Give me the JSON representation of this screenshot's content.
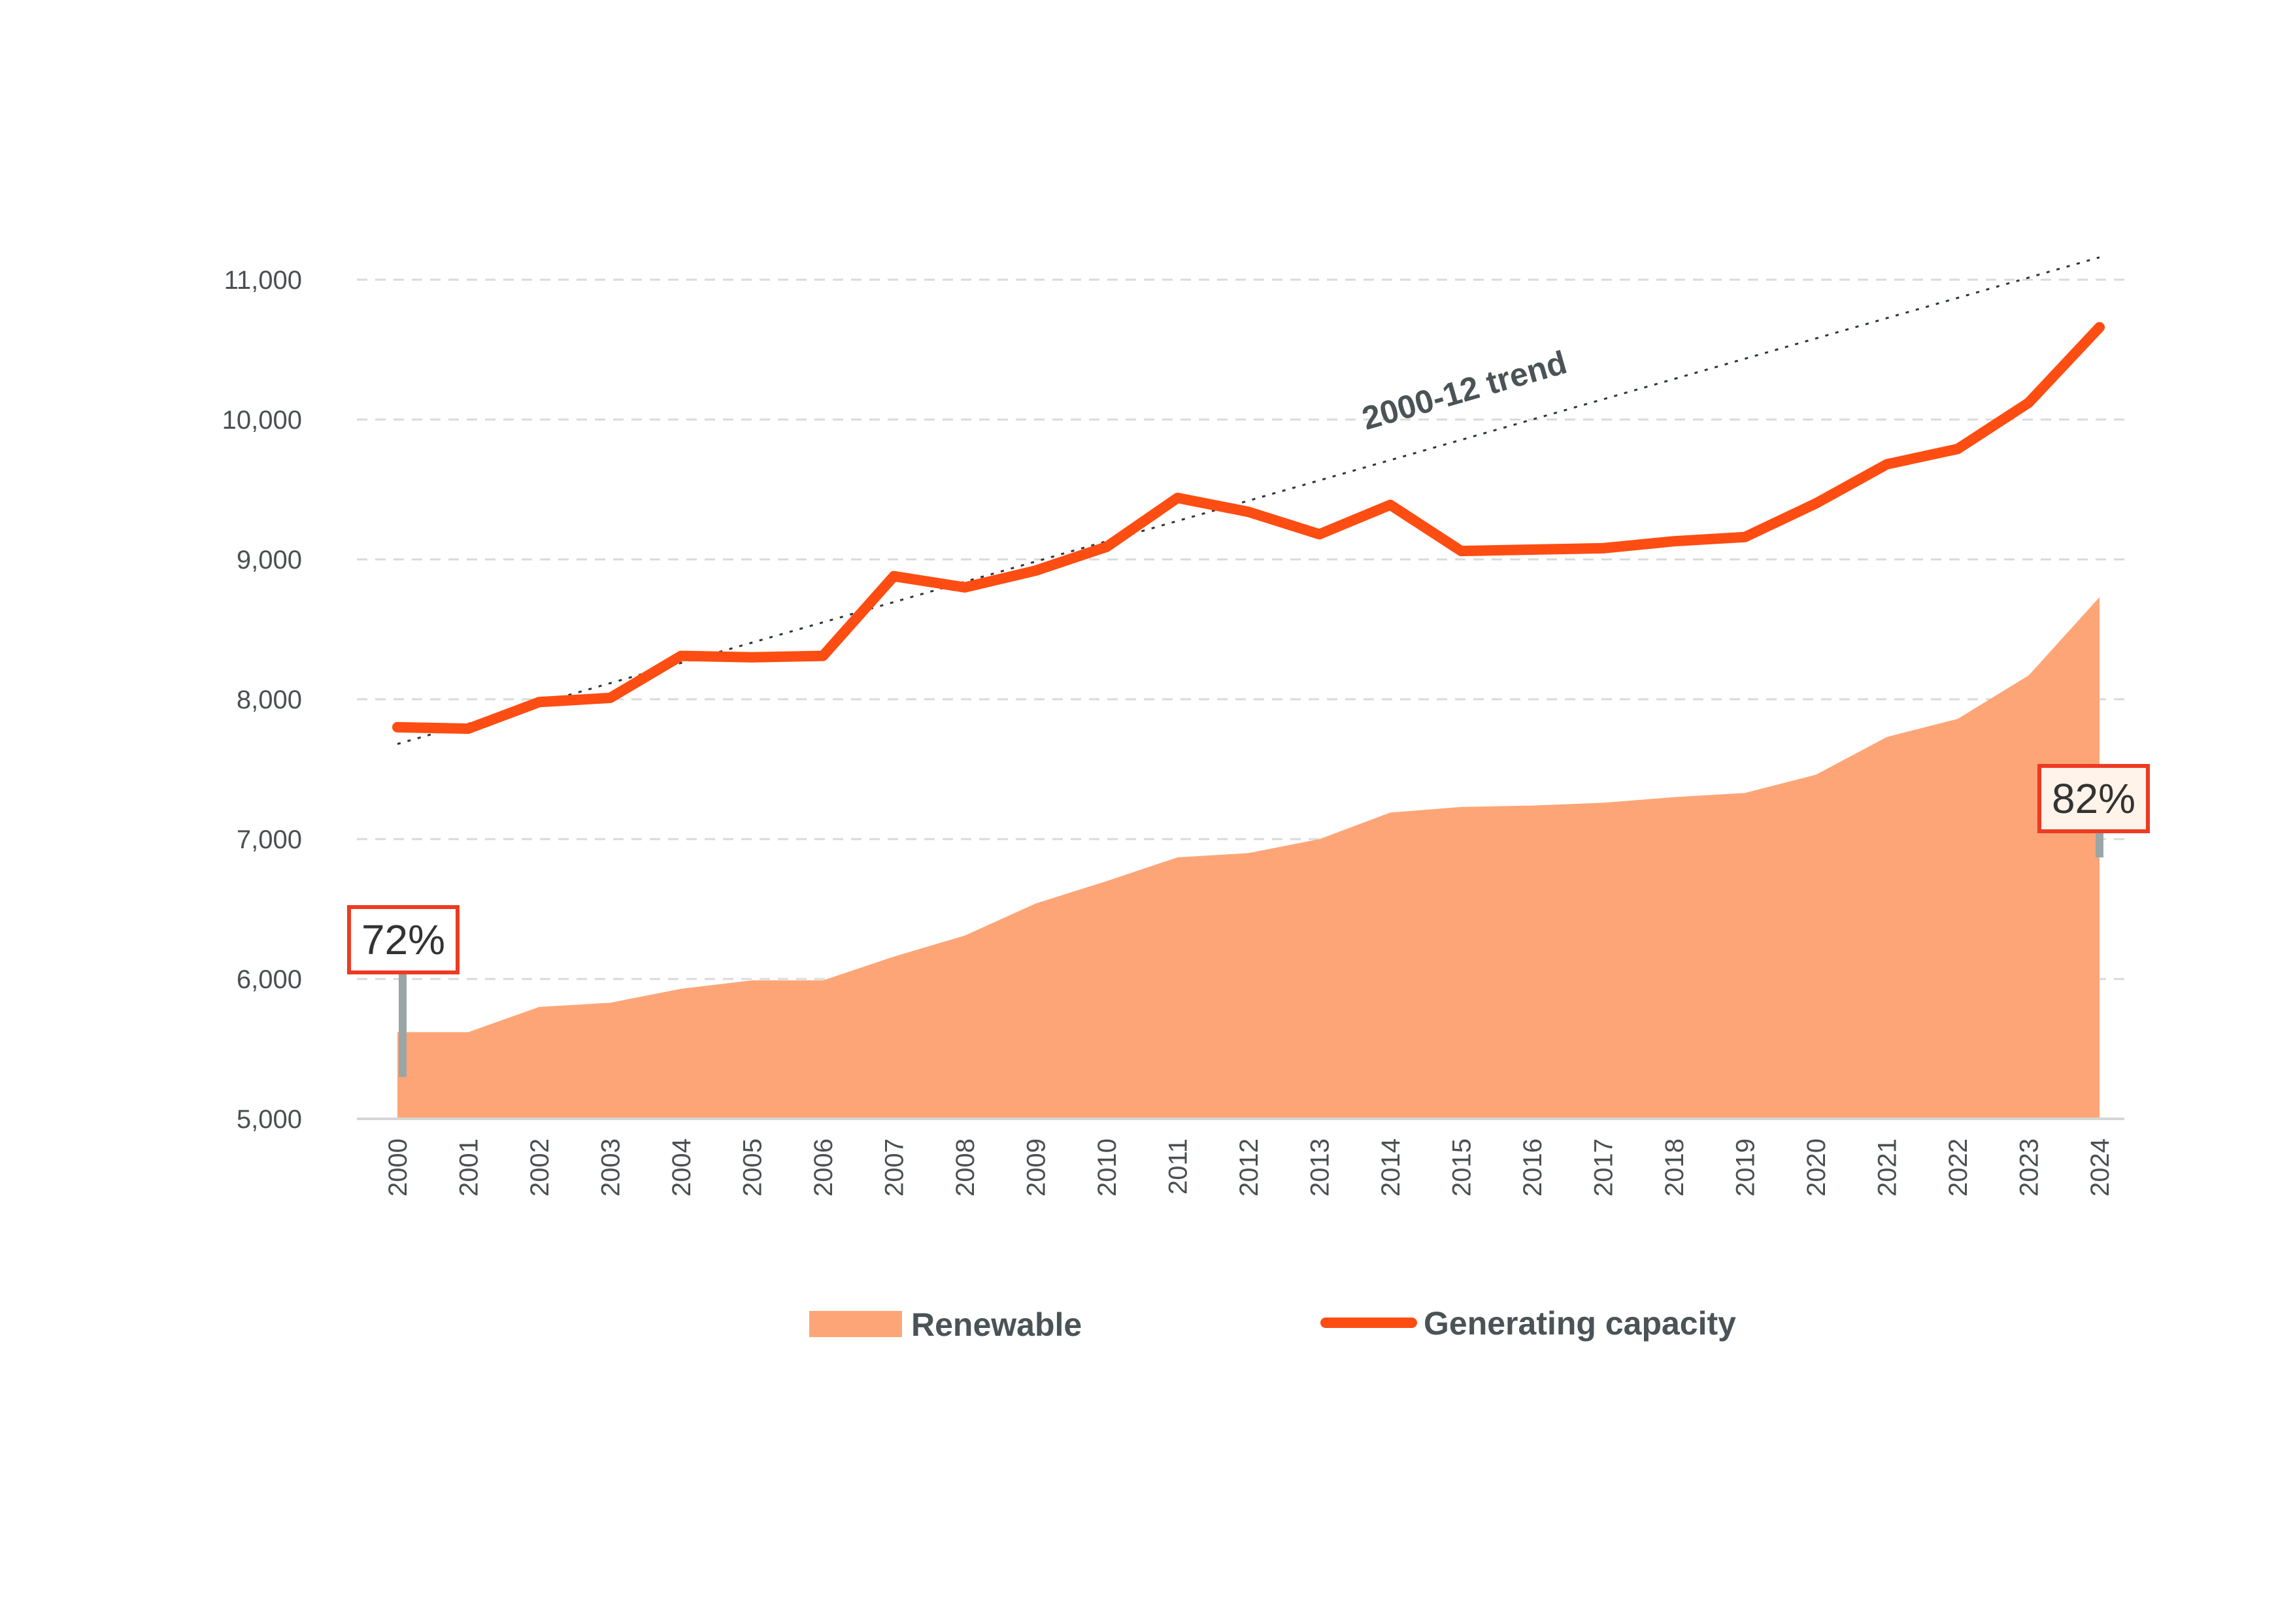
{
  "chart_data": {
    "type": "line",
    "title": "",
    "xlabel": "",
    "ylabel": "",
    "ylim": [
      5000,
      11000
    ],
    "yticks": [
      5000,
      6000,
      7000,
      8000,
      9000,
      10000,
      11000
    ],
    "ytick_labels": [
      "5,000",
      "6,000",
      "7,000",
      "8,000",
      "9,000",
      "10,000",
      "11,000"
    ],
    "grid": "horizontal dashed",
    "categories": [
      "2000",
      "2001",
      "2002",
      "2003",
      "2004",
      "2005",
      "2006",
      "2007",
      "2008",
      "2009",
      "2010",
      "2011",
      "2012",
      "2013",
      "2014",
      "2015",
      "2016",
      "2017",
      "2018",
      "2019",
      "2020",
      "2021",
      "2022",
      "2023",
      "2024"
    ],
    "series": [
      {
        "name": "Renewable",
        "kind": "area",
        "color": "#fea577",
        "values": [
          5620,
          5620,
          5800,
          5830,
          5930,
          5990,
          5990,
          6160,
          6310,
          6540,
          6700,
          6870,
          6900,
          7000,
          7190,
          7230,
          7240,
          7260,
          7300,
          7330,
          7460,
          7730,
          7860,
          8170,
          8730
        ]
      },
      {
        "name": "Generating capacity",
        "kind": "line",
        "color": "#fe4d12",
        "values": [
          7800,
          7790,
          7980,
          8010,
          8310,
          8300,
          8310,
          8880,
          8800,
          8920,
          9090,
          9440,
          9340,
          9180,
          9390,
          9060,
          9070,
          9080,
          9130,
          9160,
          9400,
          9680,
          9790,
          10120,
          10660
        ]
      }
    ],
    "trend": {
      "label": "2000-12 trend",
      "start": {
        "x": "2000",
        "y": 7680
      },
      "end": {
        "x": "2024",
        "y": 11160
      }
    },
    "annotations": [
      {
        "text": "72%",
        "x": "2000",
        "y": 5620
      },
      {
        "text": "82%",
        "x": "2024",
        "y": 8730
      }
    ],
    "legend": {
      "placement": "bottom-center",
      "items": [
        "Renewable",
        "Generating capacity"
      ]
    }
  }
}
